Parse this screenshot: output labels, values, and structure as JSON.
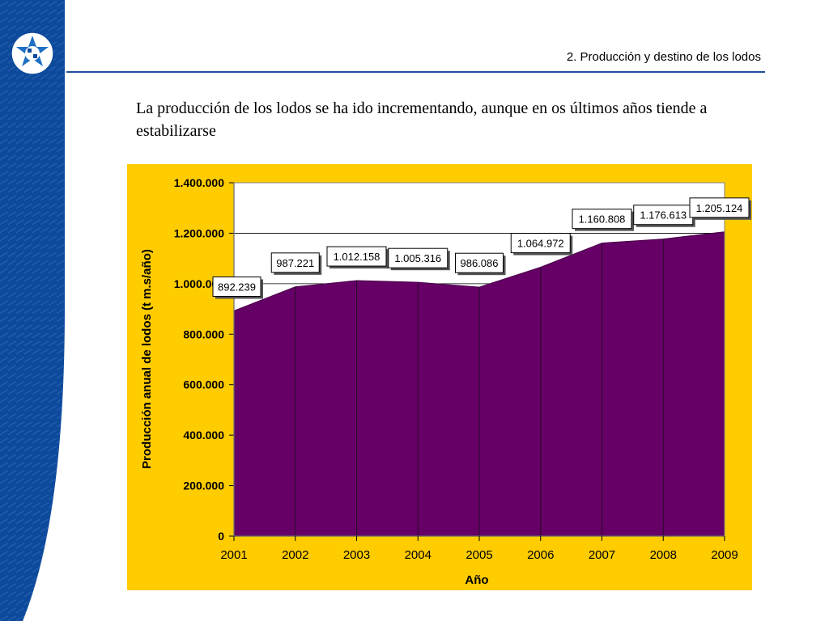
{
  "header": {
    "section_title": "2. Producción  y destino de los lodos"
  },
  "body": {
    "text": "La producción de los lodos se ha ido incrementando, aunque en os últimos años tiende a estabilizarse"
  },
  "colors": {
    "sidebar": "#0d4a9c",
    "chart_background": "#ffcc00",
    "area_fill": "#660066",
    "rule": "#1f4e9a"
  },
  "icons": {
    "logo": "university-seal-icon"
  },
  "chart_data": {
    "type": "area",
    "x": [
      "2001",
      "2002",
      "2003",
      "2004",
      "2005",
      "2006",
      "2007",
      "2008",
      "2009"
    ],
    "values": [
      892239,
      987221,
      1012158,
      1005316,
      986086,
      1064972,
      1160808,
      1176613,
      1205124
    ],
    "data_labels": [
      "892.239",
      "987.221",
      "1.012.158",
      "1.005.316",
      "986.086",
      "1.064.972",
      "1.160.808",
      "1.176.613",
      "1.205.124"
    ],
    "yticks": [
      "0",
      "200.000",
      "400.000",
      "600.000",
      "800.000",
      "1.000.000",
      "1.200.000",
      "1.400.000"
    ],
    "ylim": [
      0,
      1400000
    ],
    "xlabel": "Año",
    "ylabel": "Producción anual de lodos (t m.s/año)",
    "grid": "horizontal"
  }
}
